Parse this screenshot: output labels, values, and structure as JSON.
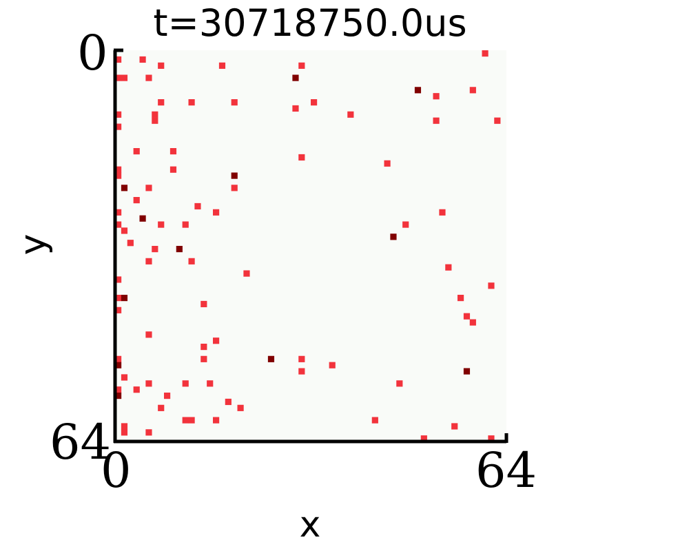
{
  "title": "t=30718750.0us",
  "chart_data": {
    "type": "heatmap",
    "title": "t=30718750.0us",
    "xlabel": "x",
    "ylabel": "y",
    "xlim": [
      0,
      64
    ],
    "ylim": [
      64,
      0
    ],
    "y_inverted": true,
    "xticks": [
      "0",
      "64"
    ],
    "yticks": [
      "0",
      "64"
    ],
    "background_color": "#f9fbf8",
    "levels": {
      "1": "#f2333c",
      "2": "#800000"
    },
    "points": [
      [
        60,
        0,
        1
      ],
      [
        0,
        1,
        1
      ],
      [
        4,
        1,
        1
      ],
      [
        17,
        2,
        1
      ],
      [
        7,
        2,
        1
      ],
      [
        30,
        2,
        1
      ],
      [
        0,
        4,
        1
      ],
      [
        1,
        4,
        1
      ],
      [
        5,
        4,
        1
      ],
      [
        29,
        4,
        2
      ],
      [
        49,
        6,
        2
      ],
      [
        58,
        6,
        1
      ],
      [
        52,
        7,
        1
      ],
      [
        7,
        8,
        1
      ],
      [
        12,
        8,
        1
      ],
      [
        19,
        8,
        1
      ],
      [
        32,
        8,
        1
      ],
      [
        29,
        9,
        1
      ],
      [
        0,
        10,
        1
      ],
      [
        6,
        10,
        1
      ],
      [
        38,
        10,
        1
      ],
      [
        6,
        11,
        1
      ],
      [
        52,
        11,
        1
      ],
      [
        62,
        11,
        1
      ],
      [
        0,
        12,
        1
      ],
      [
        3,
        16,
        1
      ],
      [
        9,
        16,
        1
      ],
      [
        30,
        17,
        1
      ],
      [
        44,
        18,
        1
      ],
      [
        0,
        19,
        1
      ],
      [
        9,
        19,
        1
      ],
      [
        0,
        20,
        1
      ],
      [
        19,
        20,
        2
      ],
      [
        1,
        22,
        2
      ],
      [
        5,
        22,
        1
      ],
      [
        19,
        22,
        1
      ],
      [
        3,
        24,
        1
      ],
      [
        13,
        25,
        1
      ],
      [
        0,
        26,
        1
      ],
      [
        16,
        26,
        1
      ],
      [
        53,
        26,
        1
      ],
      [
        4,
        27,
        2
      ],
      [
        0,
        28,
        1
      ],
      [
        7,
        28,
        1
      ],
      [
        11,
        28,
        1
      ],
      [
        47,
        28,
        1
      ],
      [
        1,
        29,
        1
      ],
      [
        45,
        30,
        2
      ],
      [
        2,
        31,
        1
      ],
      [
        6,
        32,
        1
      ],
      [
        10,
        32,
        2
      ],
      [
        5,
        34,
        1
      ],
      [
        12,
        34,
        1
      ],
      [
        54,
        35,
        1
      ],
      [
        21,
        36,
        1
      ],
      [
        0,
        37,
        1
      ],
      [
        61,
        38,
        1
      ],
      [
        0,
        40,
        1
      ],
      [
        1,
        40,
        2
      ],
      [
        56,
        40,
        1
      ],
      [
        14,
        41,
        1
      ],
      [
        0,
        42,
        1
      ],
      [
        57,
        43,
        1
      ],
      [
        58,
        44,
        1
      ],
      [
        5,
        46,
        1
      ],
      [
        16,
        47,
        1
      ],
      [
        14,
        48,
        1
      ],
      [
        0,
        50,
        1
      ],
      [
        14,
        50,
        1
      ],
      [
        25,
        50,
        2
      ],
      [
        30,
        50,
        1
      ],
      [
        35,
        51,
        1
      ],
      [
        0,
        51,
        2
      ],
      [
        30,
        52,
        1
      ],
      [
        57,
        52,
        2
      ],
      [
        1,
        53,
        1
      ],
      [
        5,
        54,
        1
      ],
      [
        11,
        54,
        1
      ],
      [
        15,
        54,
        1
      ],
      [
        46,
        54,
        1
      ],
      [
        0,
        55,
        1
      ],
      [
        3,
        55,
        1
      ],
      [
        0,
        56,
        2
      ],
      [
        8,
        56,
        1
      ],
      [
        18,
        57,
        1
      ],
      [
        7,
        58,
        1
      ],
      [
        20,
        58,
        1
      ],
      [
        11,
        60,
        1
      ],
      [
        12,
        60,
        1
      ],
      [
        16,
        60,
        1
      ],
      [
        42,
        60,
        1
      ],
      [
        1,
        61,
        1
      ],
      [
        55,
        61,
        1
      ],
      [
        1,
        62,
        1
      ],
      [
        5,
        62,
        1
      ],
      [
        50,
        63,
        1
      ],
      [
        61,
        63,
        1
      ]
    ]
  }
}
